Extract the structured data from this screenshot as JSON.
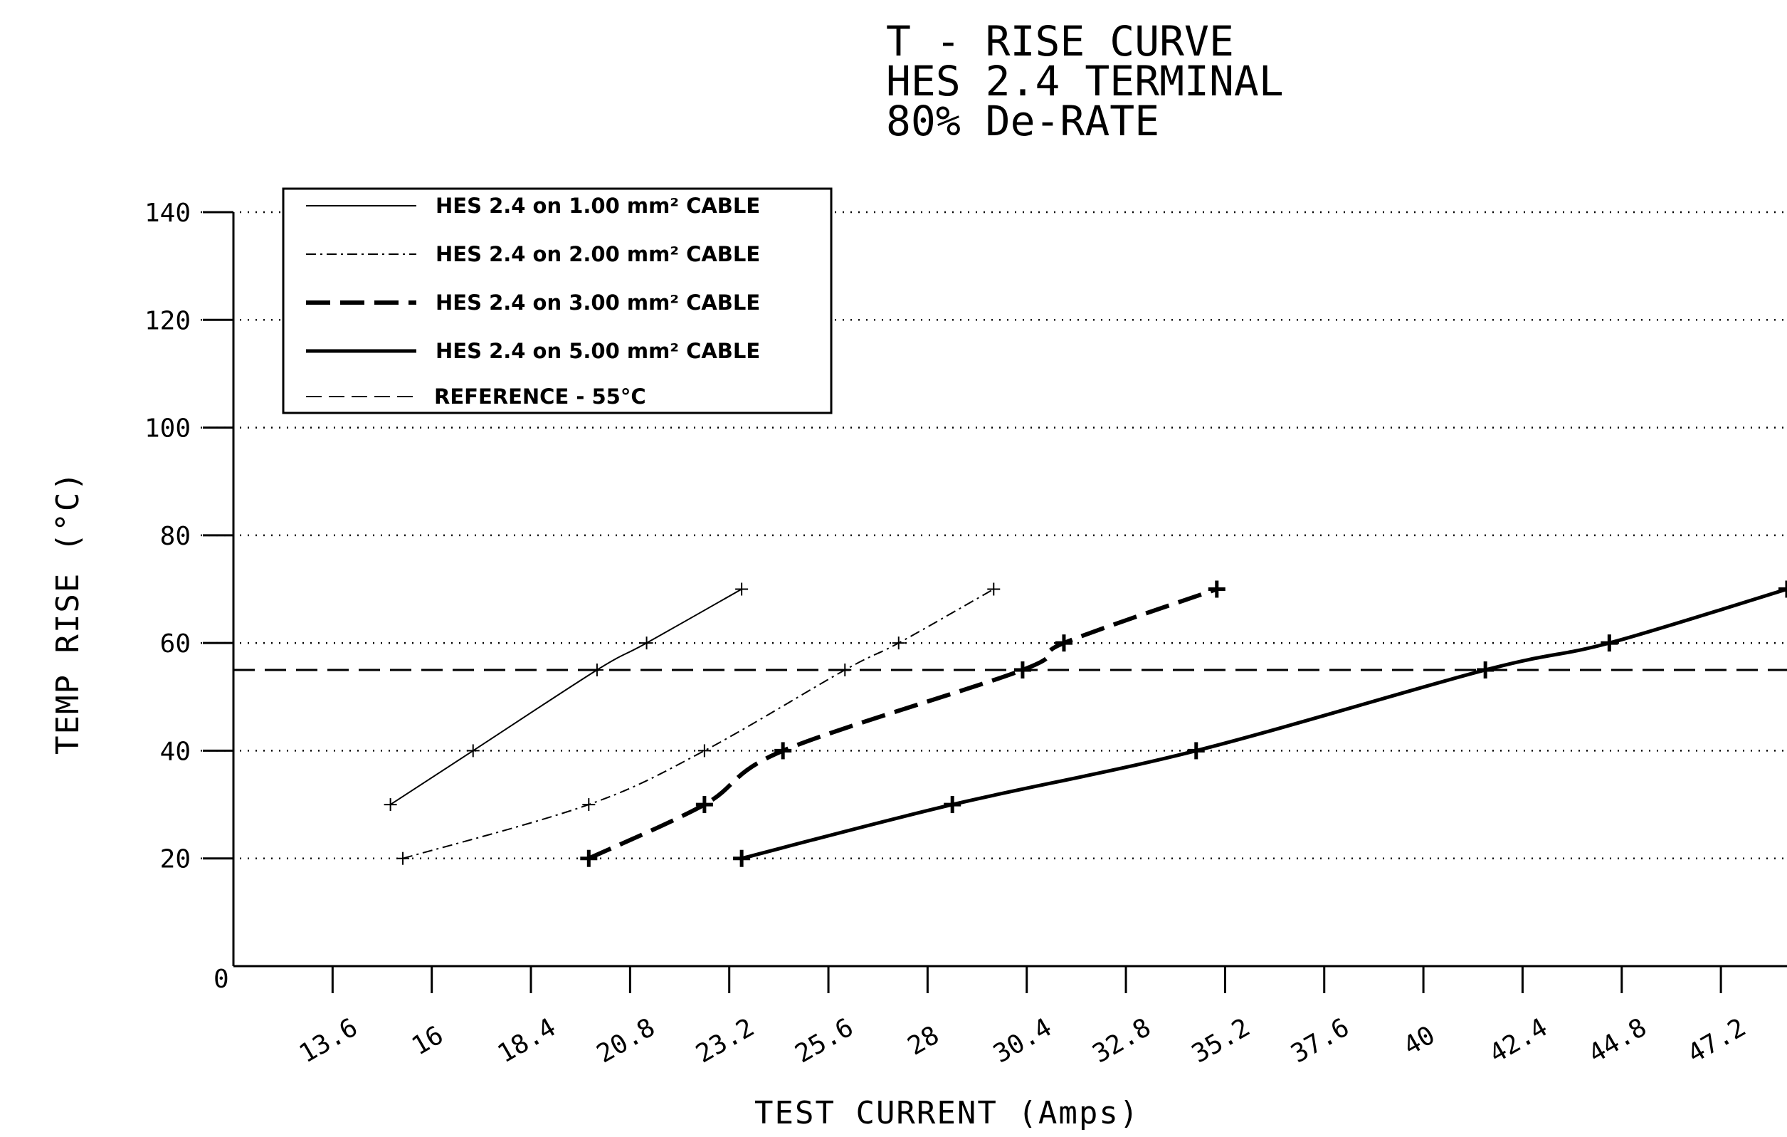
{
  "chart_data": {
    "type": "line",
    "title_lines": [
      "T - RISE CURVE",
      "HES 2.4 TERMINAL",
      "80% De-RATE"
    ],
    "xlabel": "TEST CURRENT (Amps)",
    "ylabel": "TEMP RISE (°C)",
    "xlim": [
      11.2,
      48.8
    ],
    "ylim": [
      0,
      140
    ],
    "x_ticks": [
      "13.6",
      "16",
      "18.4",
      "20.8",
      "23.2",
      "25.6",
      "28",
      "30.4",
      "32.8",
      "35.2",
      "37.6",
      "40",
      "42.4",
      "44.8",
      "47.2"
    ],
    "x_tick_values": [
      13.6,
      16,
      18.4,
      20.8,
      23.2,
      25.6,
      28,
      30.4,
      32.8,
      35.2,
      37.6,
      40,
      42.4,
      44.8,
      47.2
    ],
    "y_ticks": [
      "20",
      "40",
      "60",
      "80",
      "100",
      "120",
      "140"
    ],
    "y_tick_values": [
      20,
      40,
      60,
      80,
      100,
      120,
      140
    ],
    "y_origin_label": "0",
    "grid": "horizontal dotted",
    "legend_position": "top-left",
    "series": [
      {
        "name": "HES 2.4 on 1.00 mm² CABLE",
        "style": "thin-solid",
        "points": [
          [
            15.0,
            30
          ],
          [
            17.0,
            40
          ],
          [
            20.0,
            55
          ],
          [
            21.2,
            60
          ],
          [
            23.5,
            70
          ]
        ]
      },
      {
        "name": "HES 2.4 on 2.00 mm² CABLE",
        "style": "thin-dashdot",
        "points": [
          [
            15.3,
            20
          ],
          [
            19.8,
            30
          ],
          [
            22.6,
            40
          ],
          [
            26.0,
            55
          ],
          [
            27.3,
            60
          ],
          [
            29.6,
            70
          ]
        ]
      },
      {
        "name": "HES 2.4 on 3.00 mm² CABLE",
        "style": "thick-dashed",
        "points": [
          [
            19.8,
            20
          ],
          [
            22.6,
            30
          ],
          [
            24.5,
            40
          ],
          [
            30.3,
            55
          ],
          [
            31.3,
            60
          ],
          [
            35.0,
            70
          ]
        ]
      },
      {
        "name": "HES 2.4 on 5.00 mm² CABLE",
        "style": "thick-solid",
        "points": [
          [
            23.5,
            20
          ],
          [
            28.6,
            30
          ],
          [
            34.5,
            40
          ],
          [
            41.5,
            55
          ],
          [
            44.5,
            60
          ],
          [
            48.8,
            70
          ]
        ]
      }
    ],
    "reference": {
      "name": "REFERENCE - 55°C",
      "value": 55,
      "style": "dashed"
    }
  },
  "colors": {
    "ink": "#000000",
    "background": "#ffffff"
  }
}
